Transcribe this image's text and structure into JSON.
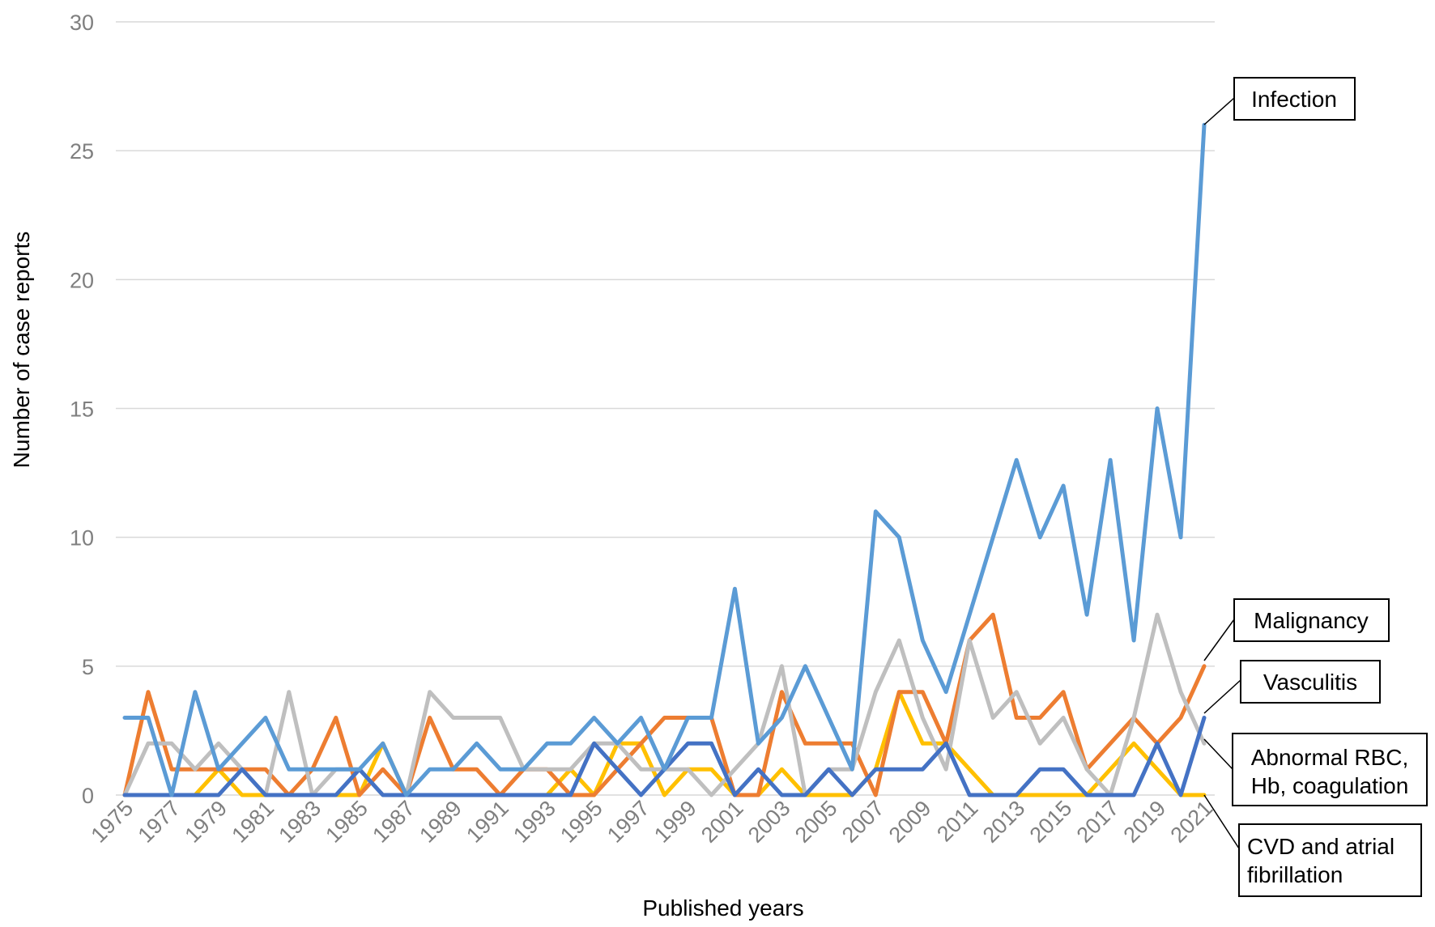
{
  "chart_data": {
    "type": "line",
    "title": "",
    "xlabel": "Published years",
    "ylabel": "Number of case reports",
    "ylim": [
      0,
      30
    ],
    "yticks": [
      0,
      5,
      10,
      15,
      20,
      25,
      30
    ],
    "grid": true,
    "legend": "callouts-right",
    "x": [
      1975,
      1976,
      1977,
      1978,
      1979,
      1980,
      1981,
      1982,
      1983,
      1984,
      1985,
      1986,
      1987,
      1988,
      1989,
      1990,
      1991,
      1992,
      1993,
      1994,
      1995,
      1996,
      1997,
      1998,
      1999,
      2000,
      2001,
      2002,
      2003,
      2004,
      2005,
      2006,
      2007,
      2008,
      2009,
      2010,
      2011,
      2012,
      2013,
      2014,
      2015,
      2016,
      2017,
      2018,
      2019,
      2020,
      2021
    ],
    "xtick_labels": [
      "1975",
      "1977",
      "1979",
      "1981",
      "1983",
      "1985",
      "1987",
      "1989",
      "1991",
      "1993",
      "1995",
      "1997",
      "1999",
      "2001",
      "2003",
      "2005",
      "2007",
      "2009",
      "2011",
      "2013",
      "2015",
      "2017",
      "2019",
      "2021"
    ],
    "series": [
      {
        "name": "CVD and atrial fibrillation",
        "color": "#ffc000",
        "values": [
          0,
          0,
          0,
          0,
          1,
          0,
          0,
          0,
          0,
          0,
          0,
          2,
          0,
          0,
          0,
          0,
          0,
          0,
          0,
          1,
          0,
          2,
          2,
          0,
          1,
          1,
          0,
          0,
          1,
          0,
          0,
          0,
          1,
          4,
          2,
          2,
          1,
          0,
          0,
          0,
          0,
          0,
          1,
          2,
          1,
          0,
          0
        ]
      },
      {
        "name": "Malignancy",
        "color": "#ed7d31",
        "values": [
          0,
          4,
          1,
          1,
          1,
          1,
          1,
          0,
          1,
          3,
          0,
          1,
          0,
          3,
          1,
          1,
          0,
          1,
          1,
          0,
          0,
          1,
          2,
          3,
          3,
          3,
          0,
          0,
          4,
          2,
          2,
          2,
          0,
          4,
          4,
          2,
          6,
          7,
          3,
          3,
          4,
          1,
          2,
          3,
          2,
          3,
          5
        ]
      },
      {
        "name": "Abnormal RBC, Hb, coagulation",
        "color": "#bfbfbf",
        "values": [
          0,
          2,
          2,
          1,
          2,
          1,
          0,
          4,
          0,
          1,
          1,
          0,
          0,
          4,
          3,
          3,
          3,
          1,
          1,
          1,
          2,
          2,
          1,
          1,
          1,
          0,
          1,
          2,
          5,
          0,
          1,
          1,
          4,
          6,
          3,
          1,
          6,
          3,
          4,
          2,
          3,
          1,
          0,
          3,
          7,
          4,
          2
        ]
      },
      {
        "name": "Vasculitis",
        "color": "#4472c4",
        "values": [
          0,
          0,
          0,
          0,
          0,
          1,
          0,
          0,
          0,
          0,
          1,
          0,
          0,
          0,
          0,
          0,
          0,
          0,
          0,
          0,
          2,
          1,
          0,
          1,
          2,
          2,
          0,
          1,
          0,
          0,
          1,
          0,
          1,
          1,
          1,
          2,
          0,
          0,
          0,
          1,
          1,
          0,
          0,
          0,
          2,
          0,
          3
        ]
      },
      {
        "name": "Infection",
        "color": "#5b9bd5",
        "values": [
          3,
          3,
          0,
          4,
          1,
          2,
          3,
          1,
          1,
          1,
          1,
          2,
          0,
          1,
          1,
          2,
          1,
          1,
          2,
          2,
          3,
          2,
          3,
          1,
          3,
          3,
          8,
          2,
          3,
          5,
          3,
          1,
          11,
          10,
          6,
          4,
          7,
          10,
          13,
          10,
          12,
          7,
          13,
          6,
          15,
          10,
          26
        ]
      }
    ],
    "callouts": {
      "infection": "Infection",
      "malignancy": "Malignancy",
      "vasculitis": "Vasculitis",
      "abnormal_line1": "Abnormal RBC,",
      "abnormal_line2": "Hb, coagulation",
      "cvd_line1": "CVD and atrial",
      "cvd_line2": "fibrillation"
    }
  }
}
